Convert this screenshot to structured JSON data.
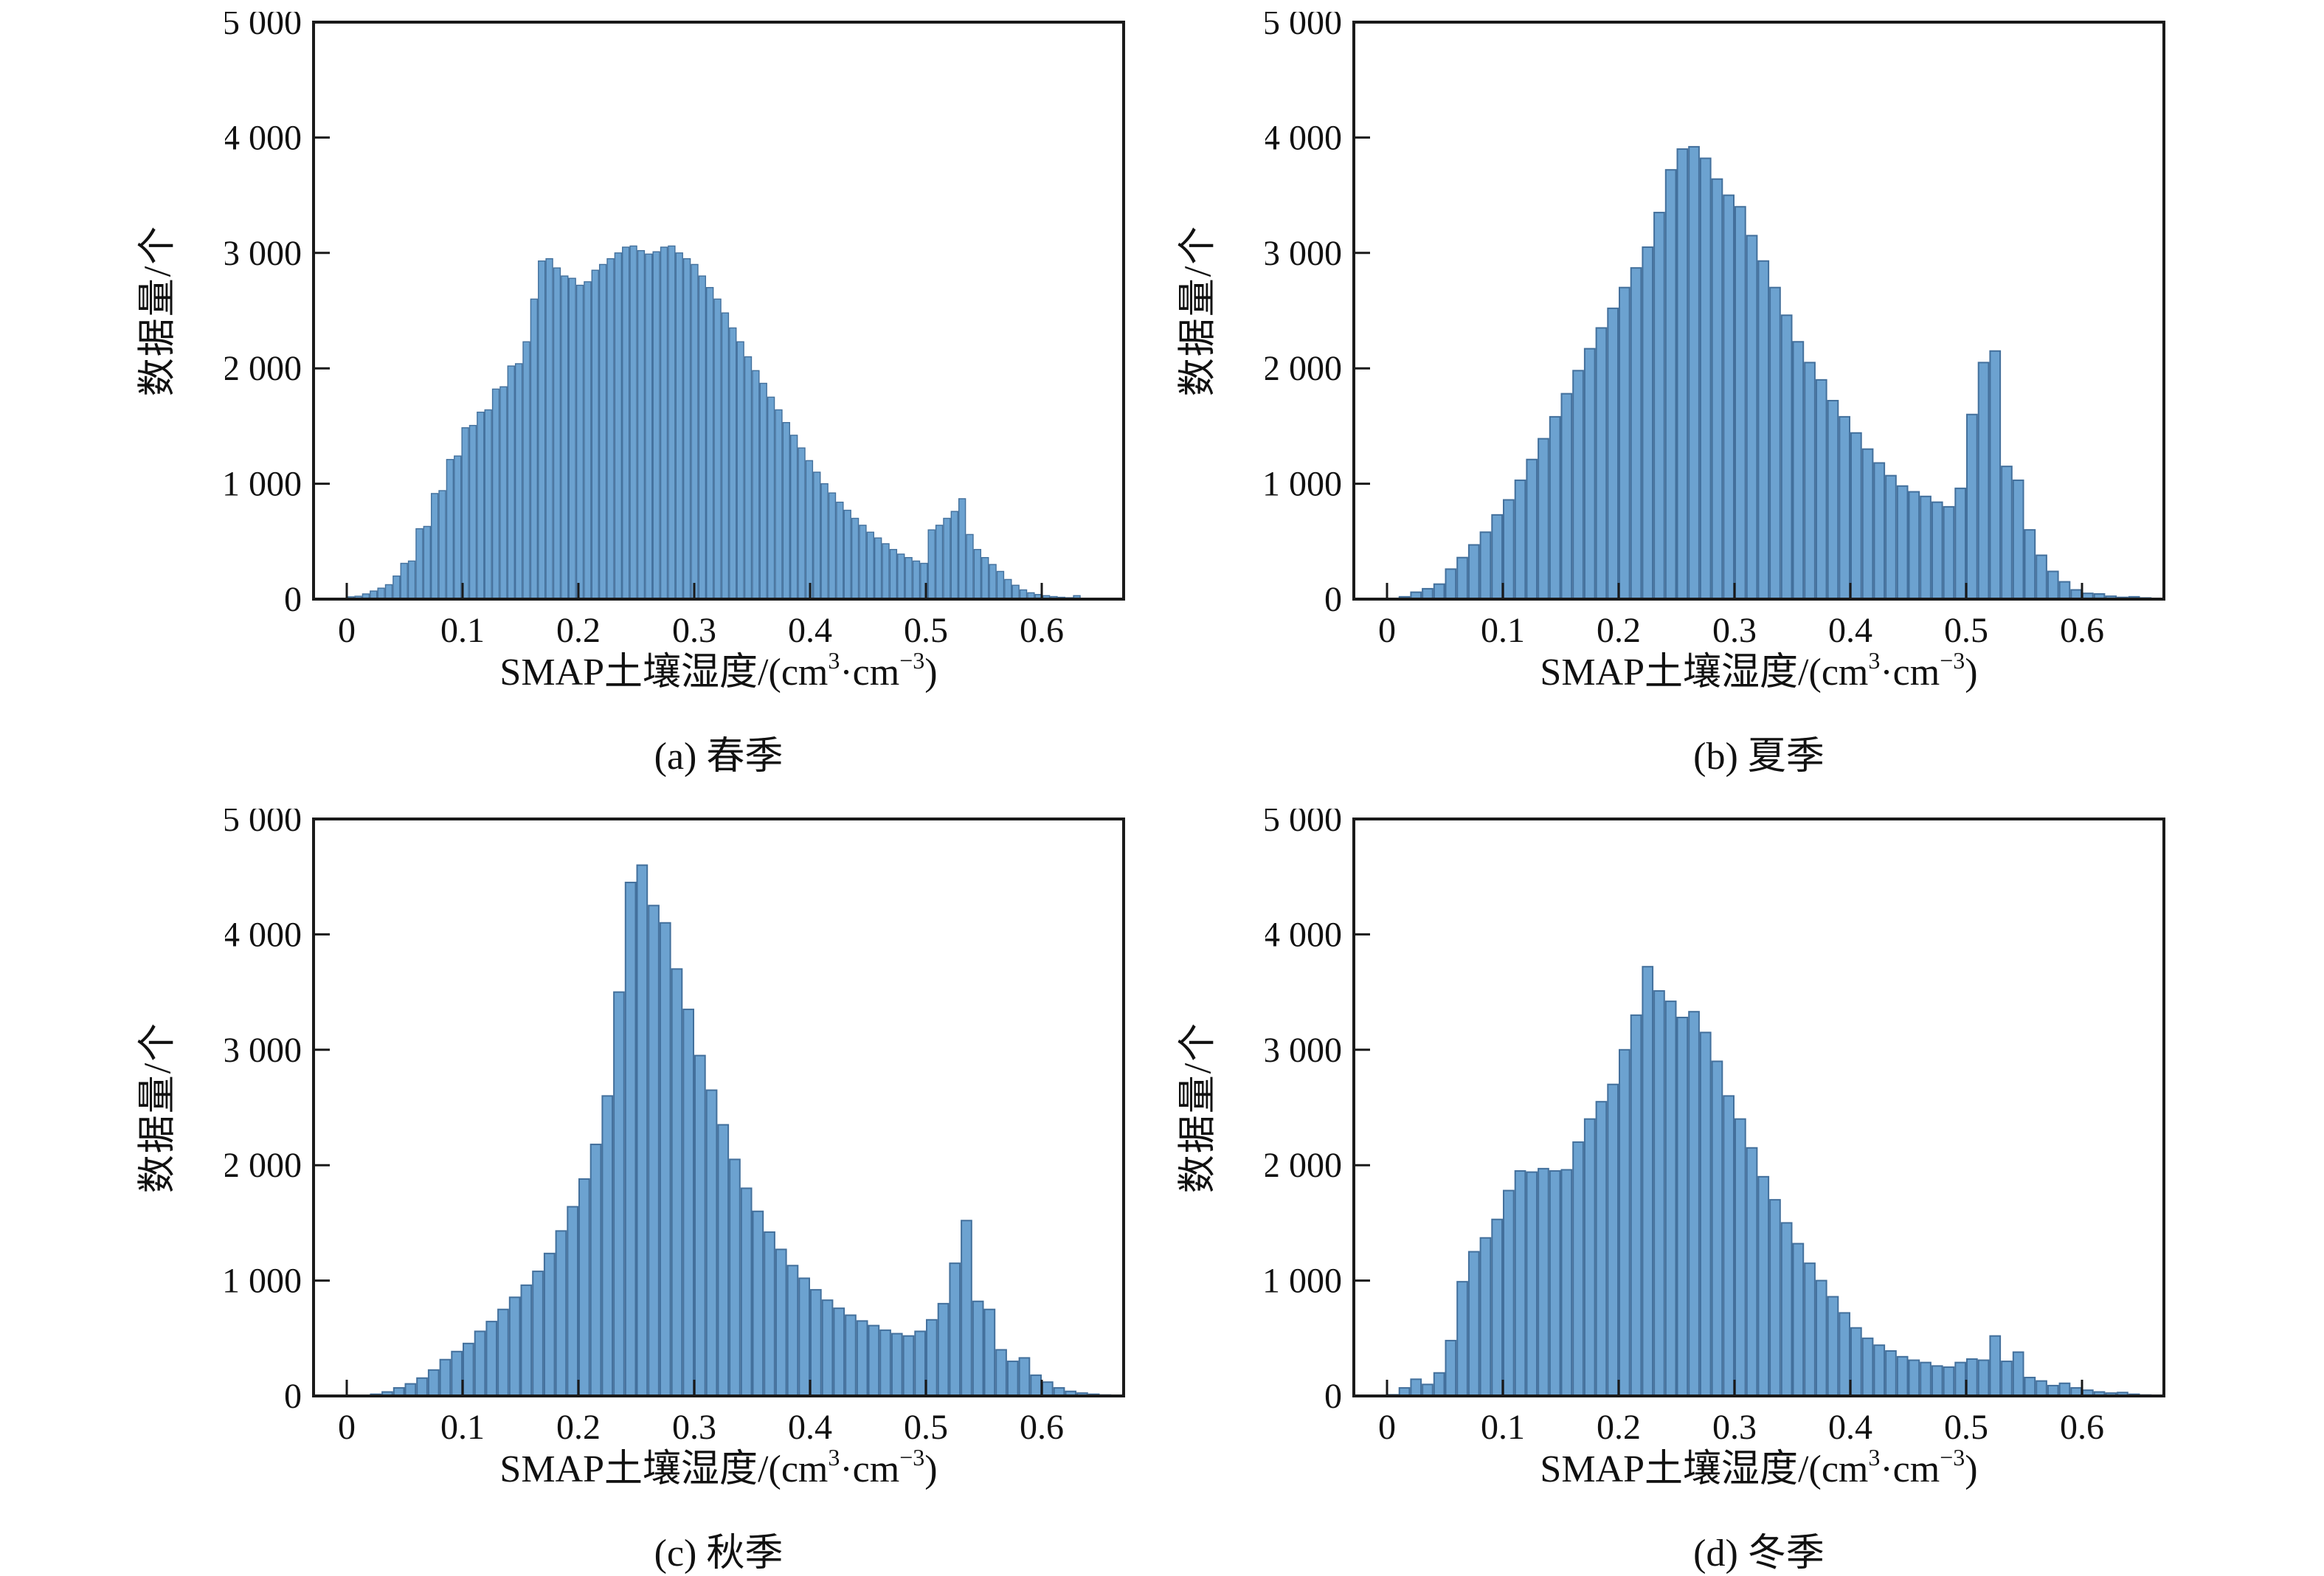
{
  "figure": {
    "background": "#ffffff",
    "style": {
      "bar_fill": "#6CA2D0",
      "bar_edge": "#43709C",
      "axis_color": "#1a1a1a",
      "text_color": "#111111"
    },
    "y_axis_label": "数据量/个",
    "x_axis_label_text": "SMAP土壤湿度/(cm³·cm⁻³)",
    "x_label_parts": {
      "pre": "SMAP土壤湿度/(cm",
      "sup1": "3",
      "mid": "·cm",
      "sup2": "−3",
      "post": ")"
    },
    "y_tick_labels": [
      "0",
      "1 000",
      "2 000",
      "3 000",
      "4 000",
      "5 000"
    ],
    "x_tick_labels": [
      "0",
      "0.1",
      "0.2",
      "0.3",
      "0.4",
      "0.5",
      "0.6"
    ]
  },
  "chart_data": [
    {
      "id": "a",
      "type": "bar",
      "subtype": "histogram",
      "season": "春季",
      "caption": "(a) 春季",
      "xlabel": "SMAP土壤湿度/(cm³·cm⁻³)",
      "ylabel": "数据量/个",
      "xlim": [
        -0.03,
        0.67
      ],
      "ylim": [
        0,
        5000
      ],
      "x_ticks": [
        0,
        0.1,
        0.2,
        0.3,
        0.4,
        0.5,
        0.6
      ],
      "y_ticks": [
        0,
        1000,
        2000,
        3000,
        4000,
        5000
      ],
      "grid": false,
      "legend": null,
      "bin_start": 0.0,
      "bin_width": 0.0066,
      "values": [
        20,
        25,
        45,
        70,
        95,
        125,
        200,
        310,
        330,
        610,
        630,
        915,
        940,
        1210,
        1240,
        1485,
        1505,
        1620,
        1640,
        1820,
        1840,
        2020,
        2040,
        2230,
        2600,
        2930,
        2950,
        2870,
        2800,
        2780,
        2720,
        2750,
        2850,
        2900,
        2950,
        3000,
        3050,
        3060,
        3020,
        2990,
        3010,
        3050,
        3060,
        3000,
        2950,
        2900,
        2800,
        2700,
        2600,
        2480,
        2350,
        2230,
        2100,
        1980,
        1870,
        1750,
        1640,
        1530,
        1420,
        1310,
        1200,
        1100,
        1000,
        920,
        840,
        770,
        700,
        640,
        580,
        530,
        480,
        430,
        390,
        360,
        330,
        310,
        600,
        640,
        700,
        760,
        870,
        560,
        430,
        360,
        300,
        240,
        170,
        120,
        80,
        55,
        40,
        30,
        22,
        16,
        12,
        30,
        8,
        5,
        3,
        2
      ]
    },
    {
      "id": "b",
      "type": "bar",
      "subtype": "histogram",
      "season": "夏季",
      "caption": "(b) 夏季",
      "xlabel": "SMAP土壤湿度/(cm³·cm⁻³)",
      "ylabel": "数据量/个",
      "xlim": [
        -0.03,
        0.67
      ],
      "ylim": [
        0,
        5000
      ],
      "x_ticks": [
        0,
        0.1,
        0.2,
        0.3,
        0.4,
        0.5,
        0.6
      ],
      "y_ticks": [
        0,
        1000,
        2000,
        3000,
        4000,
        5000
      ],
      "grid": false,
      "legend": null,
      "bin_start": 0.0,
      "bin_width": 0.01,
      "values": [
        5,
        20,
        60,
        90,
        130,
        260,
        360,
        470,
        580,
        730,
        860,
        1030,
        1210,
        1390,
        1580,
        1780,
        1980,
        2170,
        2350,
        2520,
        2700,
        2870,
        3050,
        3350,
        3720,
        3900,
        3920,
        3820,
        3640,
        3500,
        3400,
        3150,
        2930,
        2700,
        2460,
        2230,
        2050,
        1900,
        1720,
        1580,
        1440,
        1300,
        1180,
        1070,
        980,
        930,
        890,
        840,
        800,
        960,
        1600,
        2050,
        2150,
        1150,
        1030,
        600,
        380,
        240,
        150,
        80,
        50,
        45,
        25,
        15,
        20,
        10
      ]
    },
    {
      "id": "c",
      "type": "bar",
      "subtype": "histogram",
      "season": "秋季",
      "caption": "(c) 秋季",
      "xlabel": "SMAP土壤湿度/(cm³·cm⁻³)",
      "ylabel": "数据量/个",
      "xlim": [
        -0.03,
        0.67
      ],
      "ylim": [
        0,
        5000
      ],
      "x_ticks": [
        0,
        0.1,
        0.2,
        0.3,
        0.4,
        0.5,
        0.6
      ],
      "y_ticks": [
        0,
        1000,
        2000,
        3000,
        4000,
        5000
      ],
      "grid": false,
      "legend": null,
      "bin_start": 0.0,
      "bin_width": 0.01,
      "values": [
        0,
        5,
        15,
        35,
        70,
        105,
        155,
        225,
        315,
        385,
        455,
        560,
        645,
        750,
        855,
        960,
        1080,
        1235,
        1430,
        1640,
        1880,
        2180,
        2600,
        3500,
        4450,
        4600,
        4250,
        4100,
        3700,
        3350,
        2950,
        2650,
        2350,
        2050,
        1800,
        1600,
        1420,
        1270,
        1130,
        1020,
        920,
        830,
        760,
        700,
        650,
        610,
        570,
        540,
        520,
        560,
        660,
        800,
        1150,
        1520,
        820,
        750,
        400,
        300,
        330,
        180,
        120,
        70,
        40,
        25,
        15,
        8
      ]
    },
    {
      "id": "d",
      "type": "bar",
      "subtype": "histogram",
      "season": "冬季",
      "caption": "(d) 冬季",
      "xlabel": "SMAP土壤湿度/(cm³·cm⁻³)",
      "ylabel": "数据量/个",
      "xlim": [
        -0.03,
        0.67
      ],
      "ylim": [
        0,
        5000
      ],
      "x_ticks": [
        0,
        0.1,
        0.2,
        0.3,
        0.4,
        0.5,
        0.6
      ],
      "y_ticks": [
        0,
        1000,
        2000,
        3000,
        4000,
        5000
      ],
      "grid": false,
      "legend": null,
      "bin_start": 0.0,
      "bin_width": 0.01,
      "values": [
        10,
        70,
        145,
        100,
        200,
        480,
        990,
        1250,
        1370,
        1530,
        1780,
        1950,
        1940,
        1970,
        1950,
        1960,
        2200,
        2400,
        2550,
        2700,
        3000,
        3300,
        3720,
        3510,
        3420,
        3280,
        3330,
        3150,
        2900,
        2600,
        2400,
        2150,
        1900,
        1700,
        1500,
        1320,
        1150,
        1000,
        860,
        720,
        590,
        500,
        440,
        390,
        340,
        310,
        290,
        260,
        250,
        290,
        320,
        310,
        520,
        300,
        380,
        160,
        130,
        90,
        110,
        70,
        50,
        35,
        25,
        30,
        15,
        8
      ]
    }
  ]
}
